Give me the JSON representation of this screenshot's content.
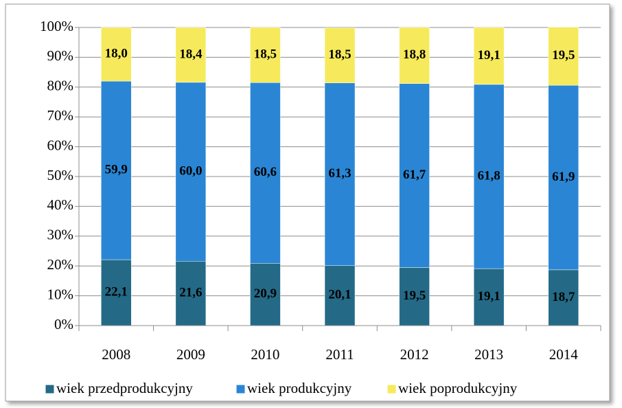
{
  "chart_data": {
    "type": "stacked_bar",
    "categories": [
      "2008",
      "2009",
      "2010",
      "2011",
      "2012",
      "2013",
      "2014"
    ],
    "series": [
      {
        "name": "wiek przedprodukcyjny",
        "color": "#246a87",
        "values": [
          22.1,
          21.6,
          20.9,
          20.1,
          19.5,
          19.1,
          18.7
        ],
        "value_labels": [
          "22,1",
          "21,6",
          "20,9",
          "20,1",
          "19,5",
          "19,1",
          "18,7"
        ]
      },
      {
        "name": "wiek produkcyjny",
        "color": "#2a86d4",
        "values": [
          59.9,
          60.0,
          60.6,
          61.3,
          61.7,
          61.8,
          61.9
        ],
        "value_labels": [
          "59,9",
          "60,0",
          "60,6",
          "61,3",
          "61,7",
          "61,8",
          "61,9"
        ]
      },
      {
        "name": "wiek poprodukcyjny",
        "color": "#f6ea5c",
        "values": [
          18.0,
          18.4,
          18.5,
          18.5,
          18.8,
          19.1,
          19.5
        ],
        "value_labels": [
          "18,0",
          "18,4",
          "18,5",
          "18,5",
          "18,8",
          "19,1",
          "19,5"
        ]
      }
    ],
    "ylim": [
      0,
      100
    ],
    "yticks": [
      {
        "value": 0,
        "label": "0%"
      },
      {
        "value": 10,
        "label": "10%"
      },
      {
        "value": 20,
        "label": "20%"
      },
      {
        "value": 30,
        "label": "30%"
      },
      {
        "value": 40,
        "label": "40%"
      },
      {
        "value": 50,
        "label": "50%"
      },
      {
        "value": 60,
        "label": "60%"
      },
      {
        "value": 70,
        "label": "70%"
      },
      {
        "value": 80,
        "label": "80%"
      },
      {
        "value": 90,
        "label": "90%"
      },
      {
        "value": 100,
        "label": "100%"
      }
    ],
    "grid": true,
    "legend": "bottom"
  }
}
